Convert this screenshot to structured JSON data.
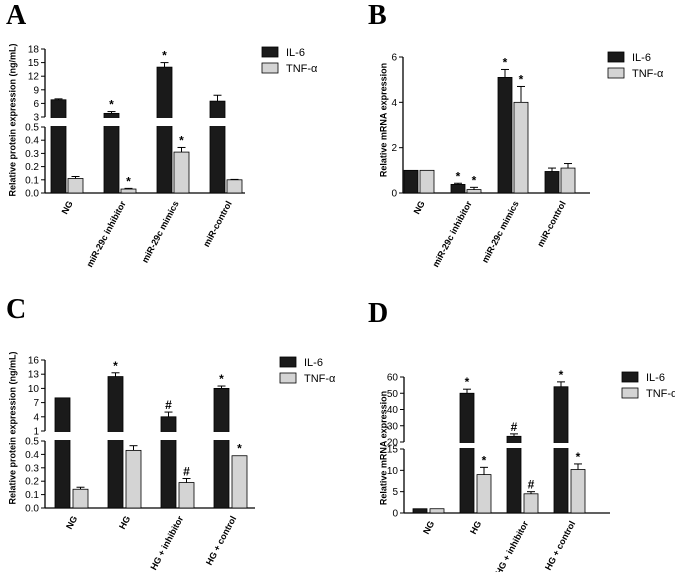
{
  "chart_data": [
    {
      "type": "bar",
      "panel": "A",
      "ylabel": "Relative protein expression (ng/mL)",
      "categories": [
        "NG",
        "miR-29c inhibitor",
        "miR-29c mimics",
        "miR-control"
      ],
      "broken_axis": true,
      "upper_ticks": [
        "18",
        "15",
        "12",
        "9",
        "6",
        "3"
      ],
      "lower_ticks": [
        "0.5",
        "0.4",
        "0.3",
        "0.2",
        "0.1",
        "0.0"
      ],
      "series": [
        {
          "name": "IL-6",
          "values": [
            6.8,
            3.8,
            14.0,
            6.5
          ],
          "errors": [
            0.2,
            0.4,
            1.0,
            1.3
          ],
          "sig": [
            "",
            "*",
            "*",
            ""
          ]
        },
        {
          "name": "TNF-α",
          "values": [
            0.11,
            0.03,
            0.31,
            0.1
          ],
          "errors": [
            0.015,
            0.005,
            0.035,
            0.003
          ],
          "sig": [
            "",
            "*",
            "*",
            ""
          ]
        }
      ]
    },
    {
      "type": "bar",
      "panel": "B",
      "ylabel": "Relative mRNA expression",
      "categories": [
        "NG",
        "miR-29c inhibitor",
        "miR-29c mimics",
        "miR-control"
      ],
      "broken_axis": false,
      "ylim": [
        0,
        6
      ],
      "ticks": [
        "0",
        "2",
        "4",
        "6"
      ],
      "series": [
        {
          "name": "IL-6",
          "values": [
            1.0,
            0.38,
            5.1,
            0.95
          ],
          "errors": [
            0,
            0.05,
            0.35,
            0.15
          ],
          "sig": [
            "",
            "*",
            "*",
            ""
          ]
        },
        {
          "name": "TNF-α",
          "values": [
            1.0,
            0.15,
            4.0,
            1.1
          ],
          "errors": [
            0,
            0.1,
            0.7,
            0.2
          ],
          "sig": [
            "",
            "*",
            "*",
            ""
          ]
        }
      ]
    },
    {
      "type": "bar",
      "panel": "C",
      "ylabel": "Relative protein expression (ng/mL)",
      "categories": [
        "NG",
        "HG",
        "HG + inhibitor",
        "HG + control"
      ],
      "broken_axis": true,
      "upper_ticks": [
        "16",
        "13",
        "10",
        "7",
        "4",
        "1"
      ],
      "lower_ticks": [
        "0.5",
        "0.4",
        "0.3",
        "0.2",
        "0.1",
        "0.0"
      ],
      "series": [
        {
          "name": "IL-6",
          "values": [
            8.0,
            12.5,
            4.0,
            10.0
          ],
          "errors": [
            0,
            0.8,
            1.0,
            0.5
          ],
          "sig": [
            "",
            "*",
            "#",
            "*"
          ]
        },
        {
          "name": "TNF-α",
          "values": [
            0.14,
            0.43,
            0.19,
            0.39
          ],
          "errors": [
            0.015,
            0.035,
            0.03,
            0
          ],
          "sig": [
            "",
            "*",
            "#",
            "*"
          ]
        }
      ]
    },
    {
      "type": "bar",
      "panel": "D",
      "ylabel": "Relative mRNA expression",
      "categories": [
        "NG",
        "HG",
        "HG + inhibitor",
        "HG + control"
      ],
      "broken_axis": true,
      "upper_ticks": [
        "60",
        "50",
        "40",
        "30",
        "20"
      ],
      "lower_ticks": [
        "15",
        "10",
        "5",
        "0"
      ],
      "series": [
        {
          "name": "IL-6",
          "values": [
            1.0,
            50.0,
            23.5,
            54.0
          ],
          "errors": [
            0,
            2.5,
            1.5,
            3.0
          ],
          "sig": [
            "",
            "*",
            "#",
            "*"
          ]
        },
        {
          "name": "TNF-α",
          "values": [
            1.0,
            9.0,
            4.5,
            10.2
          ],
          "errors": [
            0,
            1.7,
            0.5,
            1.3
          ],
          "sig": [
            "",
            "*",
            "#",
            "*"
          ]
        }
      ]
    }
  ],
  "colors": {
    "il6": "#1a1a1a",
    "tnf": "#d4d4d4",
    "axis": "#000000"
  }
}
